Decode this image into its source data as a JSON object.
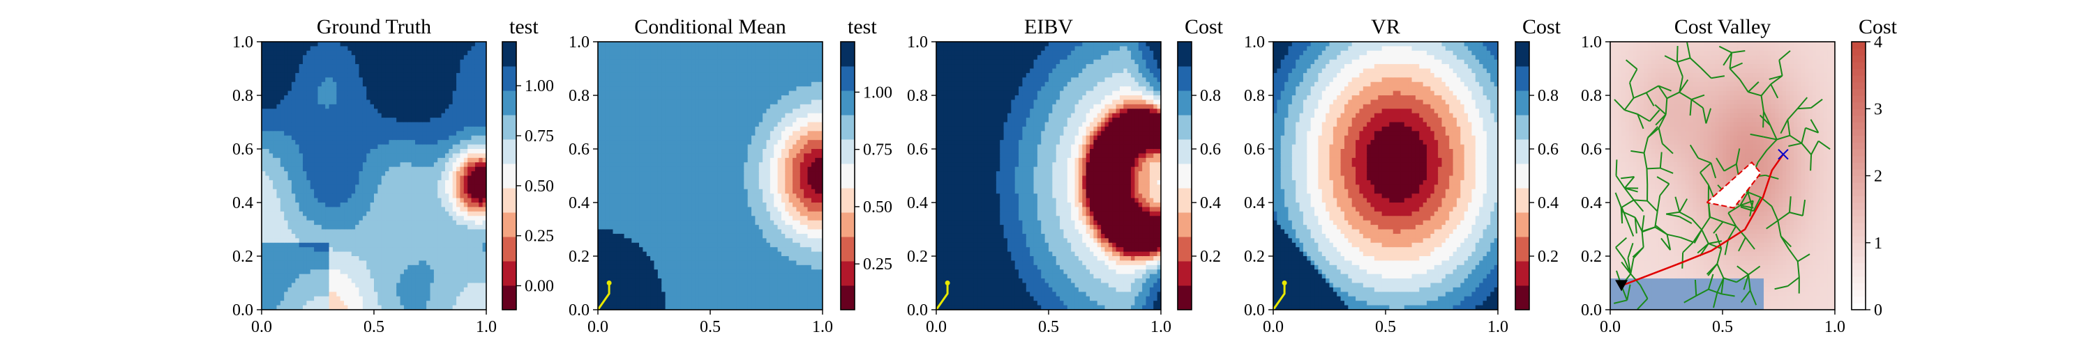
{
  "colors": {
    "rdbu_levels": [
      "#67001f",
      "#b2182b",
      "#d6604d",
      "#f4a582",
      "#fddbc7",
      "#f7f7f7",
      "#d1e5f0",
      "#92c5de",
      "#4393c3",
      "#2166ac",
      "#053061"
    ],
    "path": "#e8e800",
    "tree": "#1a8a1a",
    "route": "#e00000",
    "target_marker": "#0000cc",
    "start_marker": "#000000",
    "cost_low": "#ffffff",
    "cost_high": "#c0392b",
    "cost_blue": "#6a8fc2"
  },
  "chart_data": [
    {
      "type": "heatmap",
      "title": "Ground Truth",
      "colorbar_label": "test",
      "colormap": "RdBu",
      "xlim": [
        0,
        1
      ],
      "ylim": [
        0,
        1
      ],
      "xticks": [
        "0.0",
        "0.5",
        "1.0"
      ],
      "yticks": [
        "0.0",
        "0.2",
        "0.4",
        "0.6",
        "0.8",
        "1.0"
      ],
      "colorbar_ticks": [
        "0.00",
        "0.25",
        "0.50",
        "0.75",
        "1.00"
      ],
      "colorbar_range": [
        -0.12,
        1.22
      ],
      "field": "ground_truth"
    },
    {
      "type": "heatmap",
      "title": "Conditional Mean",
      "colorbar_label": "test",
      "colormap": "RdBu",
      "xlim": [
        0,
        1
      ],
      "ylim": [
        0,
        1
      ],
      "xticks": [
        "0.0",
        "0.5",
        "1.0"
      ],
      "yticks": [
        "0.0",
        "0.2",
        "0.4",
        "0.6",
        "0.8",
        "1.0"
      ],
      "colorbar_ticks": [
        "0.25",
        "0.50",
        "0.75",
        "1.00"
      ],
      "colorbar_range": [
        0.05,
        1.22
      ],
      "field": "conditional_mean",
      "path": [
        [
          0.0,
          0.0
        ],
        [
          0.05,
          0.06
        ],
        [
          0.05,
          0.1
        ]
      ]
    },
    {
      "type": "heatmap",
      "title": "EIBV",
      "colorbar_label": "Cost",
      "colormap": "RdBu",
      "xlim": [
        0,
        1
      ],
      "ylim": [
        0,
        1
      ],
      "xticks": [
        "0.0",
        "0.5",
        "1.0"
      ],
      "yticks": [
        "0.0",
        "0.2",
        "0.4",
        "0.6",
        "0.8",
        "1.0"
      ],
      "colorbar_ticks": [
        "0.2",
        "0.4",
        "0.6",
        "0.8"
      ],
      "colorbar_range": [
        0,
        1
      ],
      "field": "eibv",
      "path": [
        [
          0.0,
          0.0
        ],
        [
          0.05,
          0.06
        ],
        [
          0.05,
          0.1
        ]
      ]
    },
    {
      "type": "heatmap",
      "title": "VR",
      "colorbar_label": "Cost",
      "colormap": "RdBu",
      "xlim": [
        0,
        1
      ],
      "ylim": [
        0,
        1
      ],
      "xticks": [
        "0.0",
        "0.5",
        "1.0"
      ],
      "yticks": [
        "0.0",
        "0.2",
        "0.4",
        "0.6",
        "0.8",
        "1.0"
      ],
      "colorbar_ticks": [
        "0.2",
        "0.4",
        "0.6",
        "0.8"
      ],
      "colorbar_range": [
        0,
        1
      ],
      "field": "vr",
      "path": [
        [
          0.0,
          0.0
        ],
        [
          0.05,
          0.06
        ],
        [
          0.05,
          0.1
        ]
      ]
    },
    {
      "type": "heatmap",
      "title": "Cost Valley",
      "colorbar_label": "Cost",
      "colormap": "Reds",
      "xlim": [
        0,
        1
      ],
      "ylim": [
        0,
        1
      ],
      "xticks": [
        "0.0",
        "0.5",
        "1.0"
      ],
      "yticks": [
        "0.0",
        "0.2",
        "0.4",
        "0.6",
        "0.8",
        "1.0"
      ],
      "colorbar_ticks": [
        "0",
        "1",
        "2",
        "3",
        "4"
      ],
      "colorbar_range": [
        0,
        4
      ],
      "field": "cost_valley",
      "start": [
        0.05,
        0.09
      ],
      "target": [
        0.77,
        0.58
      ],
      "route": [
        [
          0.05,
          0.09
        ],
        [
          0.3,
          0.17
        ],
        [
          0.45,
          0.22
        ],
        [
          0.6,
          0.3
        ],
        [
          0.68,
          0.42
        ],
        [
          0.72,
          0.52
        ],
        [
          0.77,
          0.58
        ]
      ],
      "obstacle": [
        [
          0.43,
          0.4
        ],
        [
          0.63,
          0.55
        ],
        [
          0.67,
          0.51
        ],
        [
          0.55,
          0.38
        ],
        [
          0.43,
          0.4
        ]
      ]
    }
  ]
}
